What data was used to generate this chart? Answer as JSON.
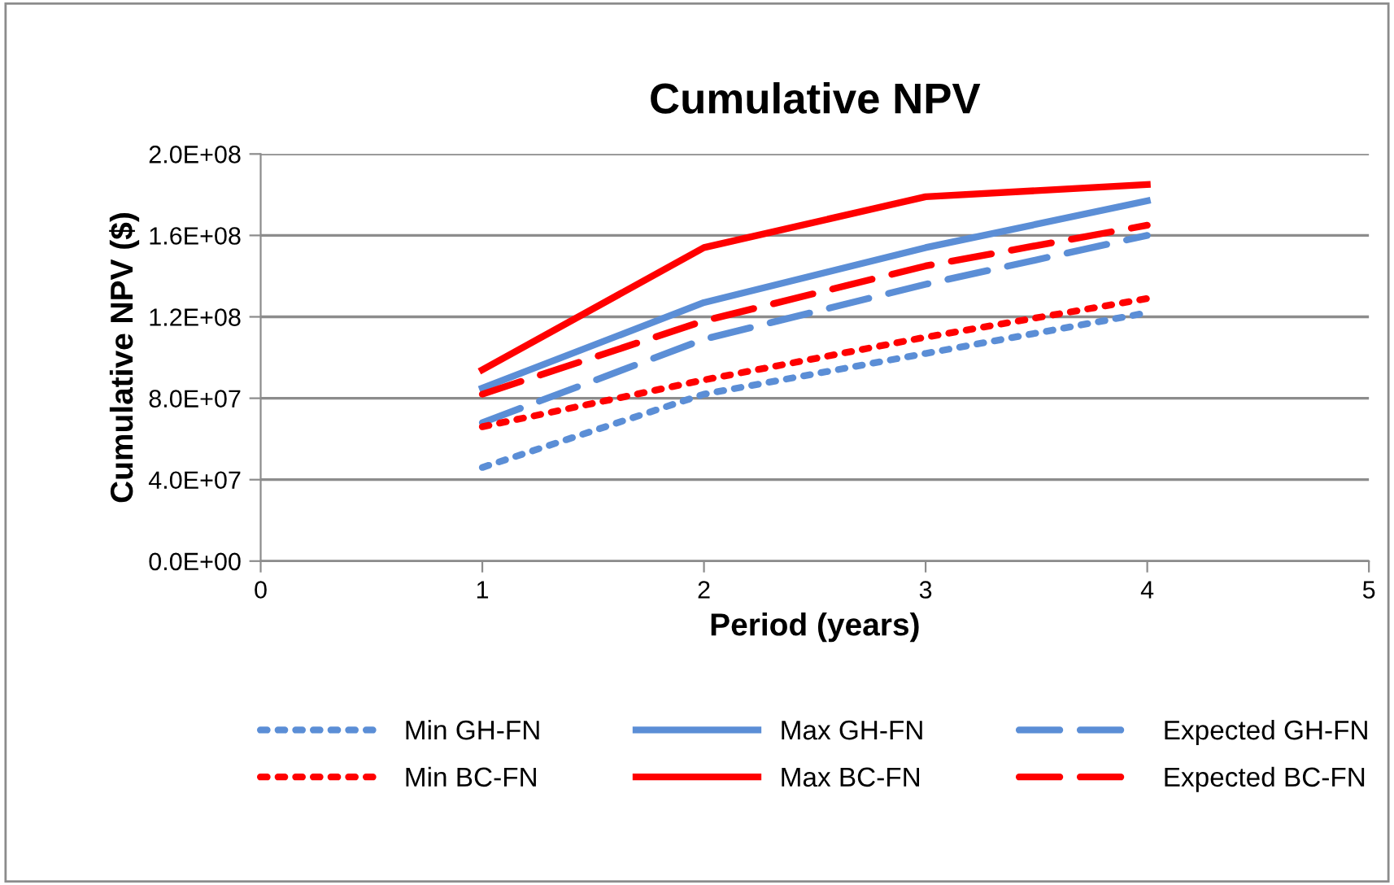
{
  "chart_data": {
    "type": "line",
    "title": "Cumulative NPV",
    "xlabel": "Period (years)",
    "ylabel": "Cumulative NPV ($)",
    "x": [
      1,
      2,
      3,
      4
    ],
    "series": [
      {
        "name": "Min GH-FN",
        "color": "#5b8ed6",
        "line_style": "dotted",
        "values": [
          46000000,
          82000000,
          102000000,
          122000000
        ]
      },
      {
        "name": "Max GH-FN",
        "color": "#5b8ed6",
        "line_style": "solid",
        "values": [
          85000000,
          127000000,
          154000000,
          177000000
        ]
      },
      {
        "name": "Expected GH-FN",
        "color": "#5b8ed6",
        "line_style": "dashed",
        "values": [
          68000000,
          109000000,
          136000000,
          160000000
        ]
      },
      {
        "name": "Min BC-FN",
        "color": "#ff0000",
        "line_style": "dotted",
        "values": [
          66000000,
          89000000,
          110000000,
          129000000
        ]
      },
      {
        "name": "Max BC-FN",
        "color": "#ff0000",
        "line_style": "solid",
        "values": [
          94000000,
          154000000,
          179000000,
          185000000
        ]
      },
      {
        "name": "Expected BC-FN",
        "color": "#ff0000",
        "line_style": "dashed",
        "values": [
          82000000,
          118000000,
          145000000,
          165000000
        ]
      }
    ],
    "xlim": [
      0,
      5
    ],
    "xticks": [
      0,
      1,
      2,
      3,
      4,
      5
    ],
    "ylim": [
      0,
      200000000
    ],
    "yticks": [
      {
        "value": 0,
        "label": "0.0E+00"
      },
      {
        "value": 40000000,
        "label": "4.0E+07"
      },
      {
        "value": 80000000,
        "label": "8.0E+07"
      },
      {
        "value": 120000000,
        "label": "1.2E+08"
      },
      {
        "value": 160000000,
        "label": "1.6E+08"
      },
      {
        "value": 200000000,
        "label": "2.0E+08"
      }
    ],
    "grid": "y",
    "legend": "bottom",
    "marker": "none"
  }
}
